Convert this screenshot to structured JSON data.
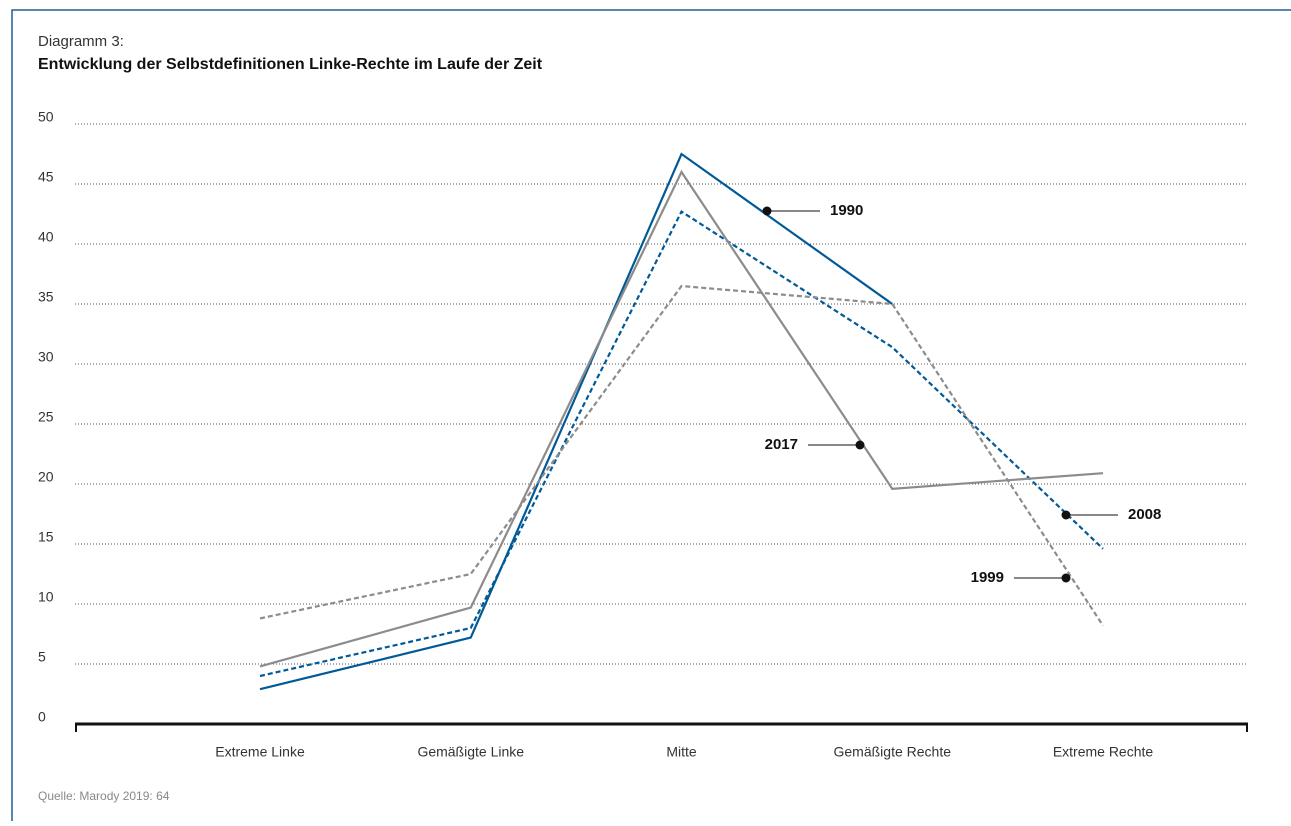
{
  "chart_data": {
    "type": "line",
    "title": "Diagramm 3:",
    "subtitle": "Entwicklung der Selbstdefinitionen Linke-Rechte im Laufe der Zeit",
    "source": "Quelle: Marody 2019: 64",
    "categories": [
      "Extreme Linke",
      "Gemäßigte Linke",
      "Mitte",
      "Gemäßigte Rechte",
      "Extreme Rechte"
    ],
    "series": [
      {
        "name": "1990",
        "color": "#005a98",
        "dash": false,
        "values": [
          2.9,
          7.2,
          47.5,
          35,
          null
        ]
      },
      {
        "name": "2008",
        "color": "#005a98",
        "dash": true,
        "values": [
          4,
          8,
          42.7,
          31.4,
          14.6
        ]
      },
      {
        "name": "1999",
        "color": "#8c8c8c",
        "dash": true,
        "values": [
          8.8,
          12.5,
          36.5,
          35,
          8.2
        ]
      },
      {
        "name": "2017",
        "color": "#8c8c8c",
        "dash": false,
        "values": [
          4.8,
          9.7,
          46,
          19.6,
          20.9
        ]
      }
    ],
    "ylim": [
      0,
      50
    ],
    "yticks": [
      0,
      5,
      10,
      15,
      20,
      25,
      30,
      35,
      40,
      45,
      50
    ],
    "grid": true
  }
}
